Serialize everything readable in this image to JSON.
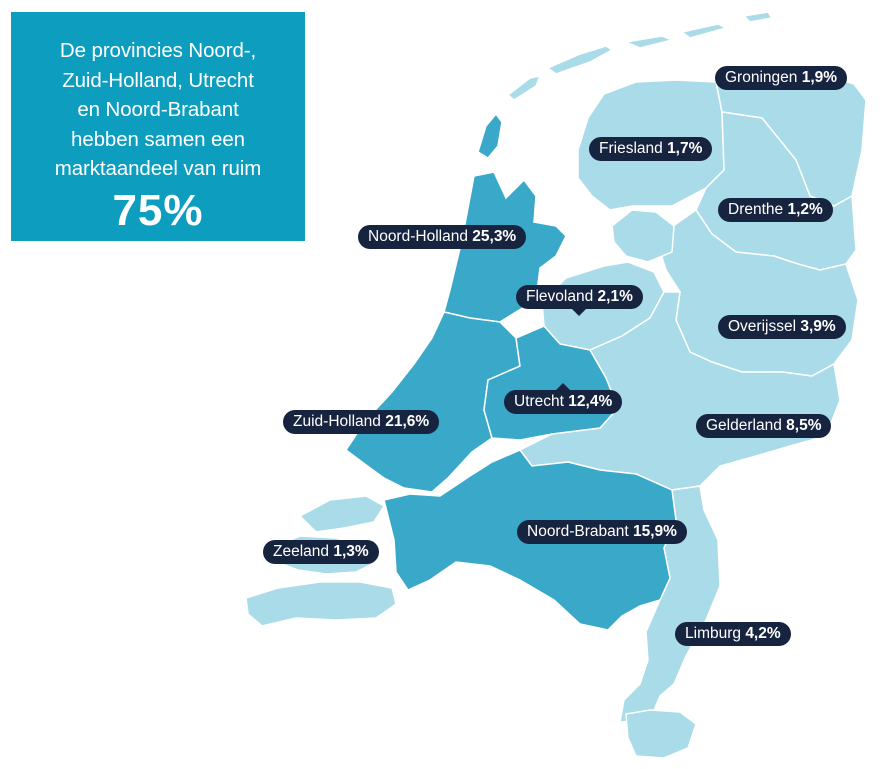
{
  "callout": {
    "text": "De provincies Noord-,\nZuid-Holland, Utrecht\nen Noord-Brabant\nhebben samen een\nmarktaandeel van ruim",
    "value": "75%"
  },
  "colors": {
    "callout_bg": "#0d9dbf",
    "highlight_province": "#3aa8c8",
    "other_province": "#a9dbe8",
    "border": "#ffffff",
    "label_bg": "#17243f"
  },
  "provinces": [
    {
      "id": "groningen",
      "name": "Groningen",
      "value": "1,9%",
      "highlighted": false
    },
    {
      "id": "friesland",
      "name": "Friesland",
      "value": "1,7%",
      "highlighted": false
    },
    {
      "id": "drenthe",
      "name": "Drenthe",
      "value": "1,2%",
      "highlighted": false
    },
    {
      "id": "noord-holland",
      "name": "Noord-Holland",
      "value": "25,3%",
      "highlighted": true
    },
    {
      "id": "flevoland",
      "name": "Flevoland",
      "value": "2,1%",
      "highlighted": false
    },
    {
      "id": "overijssel",
      "name": "Overijssel",
      "value": "3,9%",
      "highlighted": false
    },
    {
      "id": "utrecht",
      "name": "Utrecht",
      "value": "12,4%",
      "highlighted": true
    },
    {
      "id": "zuid-holland",
      "name": "Zuid-Holland",
      "value": "21,6%",
      "highlighted": true
    },
    {
      "id": "gelderland",
      "name": "Gelderland",
      "value": "8,5%",
      "highlighted": false
    },
    {
      "id": "noord-brabant",
      "name": "Noord-Brabant",
      "value": "15,9%",
      "highlighted": true
    },
    {
      "id": "zeeland",
      "name": "Zeeland",
      "value": "1,3%",
      "highlighted": false
    },
    {
      "id": "limburg",
      "name": "Limburg",
      "value": "4,2%",
      "highlighted": false
    }
  ]
}
